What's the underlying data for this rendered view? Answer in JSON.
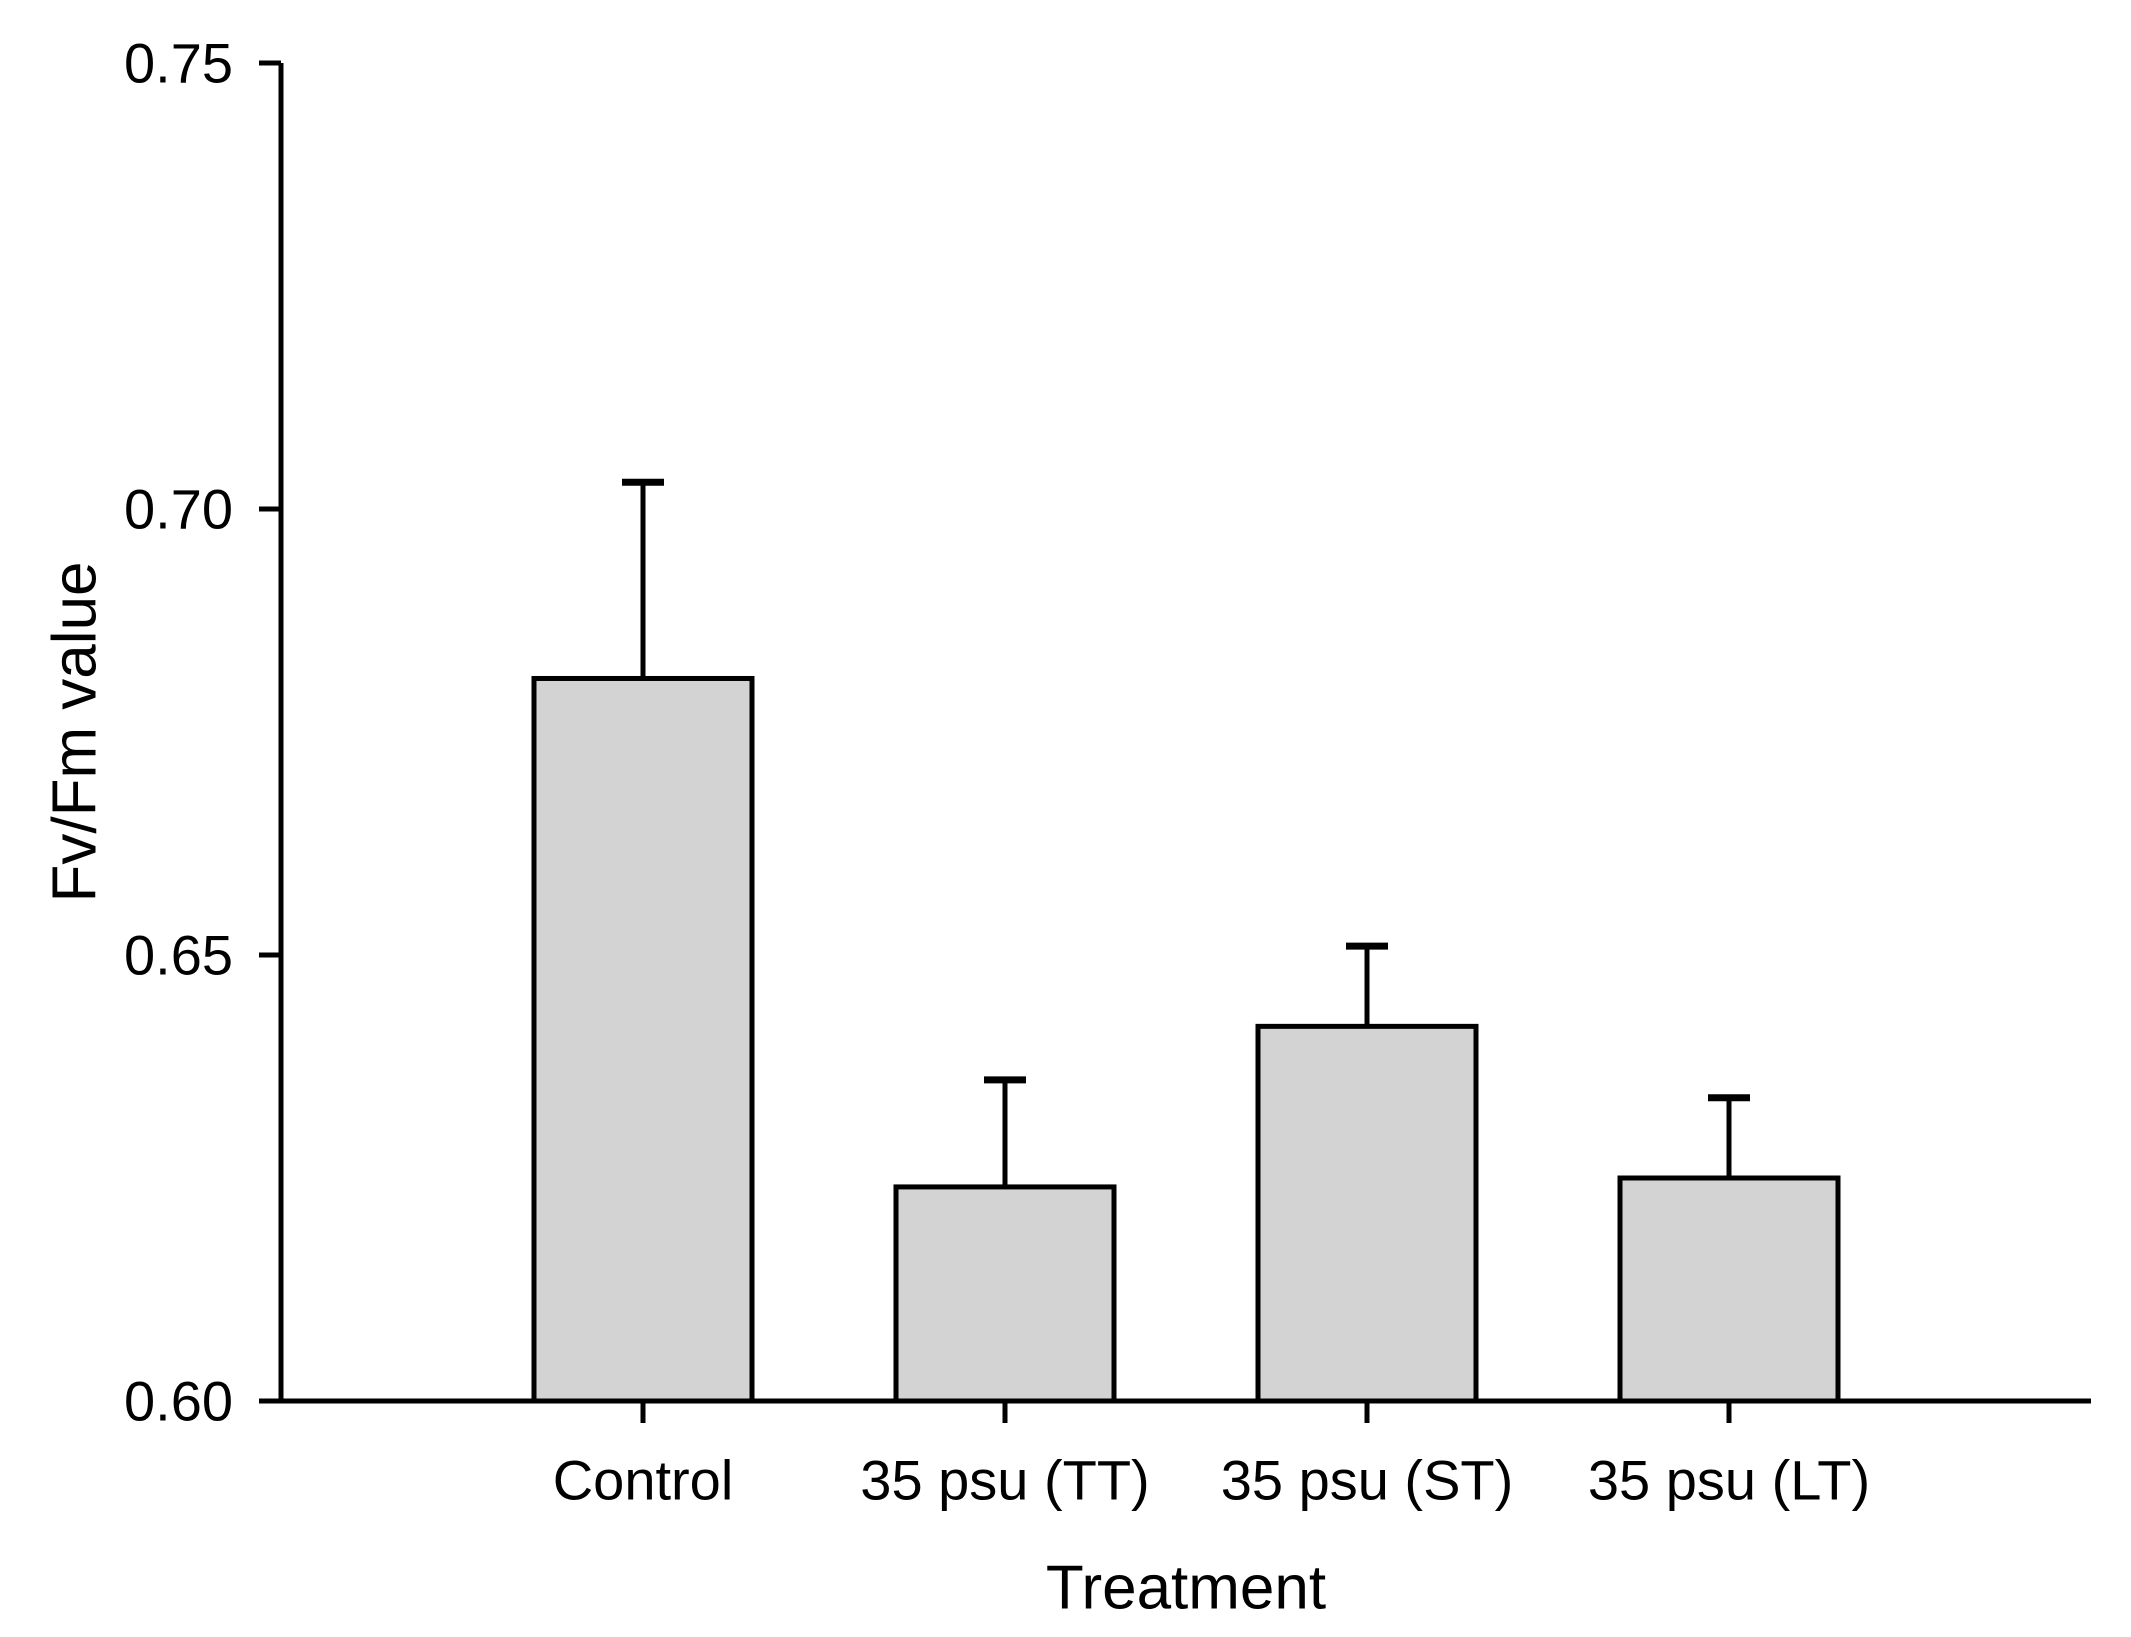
{
  "chart_data": {
    "type": "bar",
    "title": "",
    "xlabel": "Treatment",
    "ylabel": "Fv/Fm value",
    "categories": [
      "Control",
      "35 psu (TT)",
      "35 psu (ST)",
      "35 psu (LT)"
    ],
    "values": [
      0.681,
      0.624,
      0.642,
      0.625
    ],
    "errors_upper": [
      0.022,
      0.012,
      0.009,
      0.009
    ],
    "error_bar_direction": "up",
    "ylim": [
      0.6,
      0.75
    ],
    "yticks": [
      "0.60",
      "0.65",
      "0.70",
      "0.75"
    ],
    "grid": false,
    "legend_visible": false,
    "bar_fill_color": "#d3d3d3",
    "bar_edge_color": "#000000",
    "error_bar_color": "#000000",
    "axis_color": "#000000",
    "text_color": "#000000",
    "background_color": "#ffffff"
  }
}
